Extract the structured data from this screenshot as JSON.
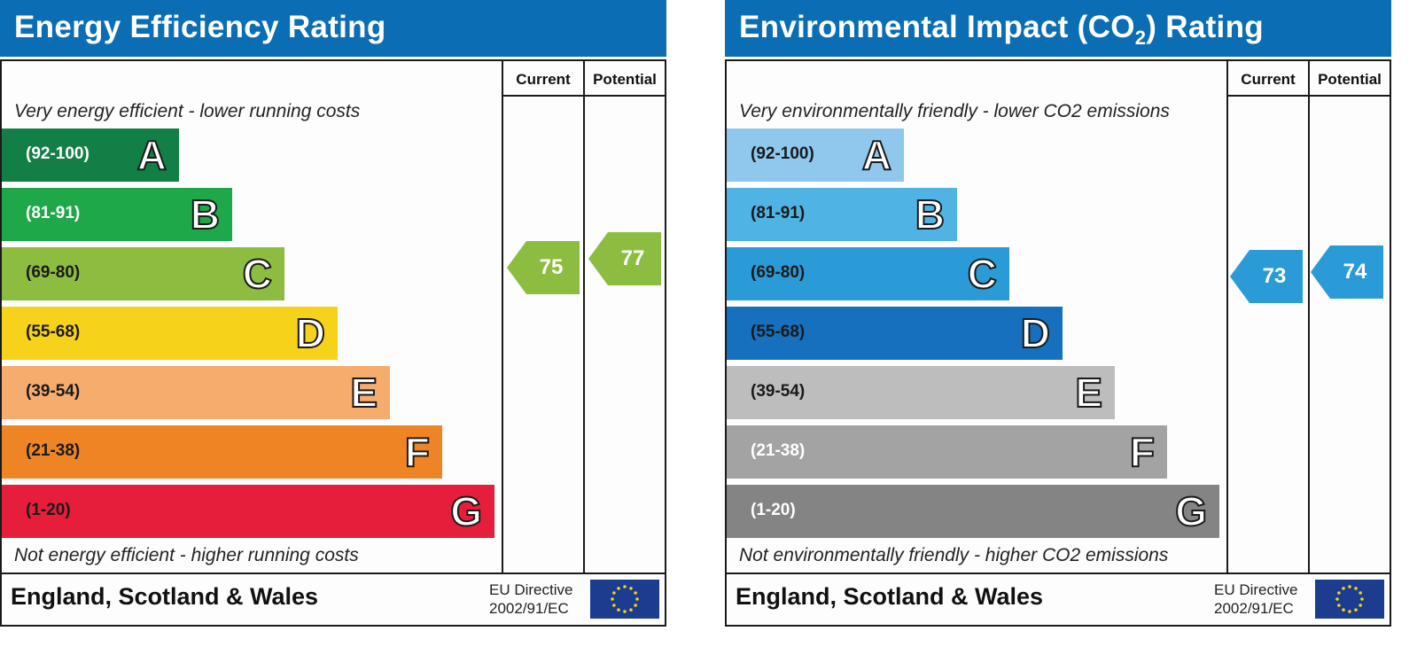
{
  "panels": [
    {
      "title": "Energy Efficiency Rating",
      "title_sub": "",
      "title_suffix": "",
      "col_current": "Current",
      "col_potential": "Potential",
      "caption_top": "Very energy efficient - lower running costs",
      "caption_bottom": "Not energy efficient - higher running costs",
      "footer_country": "England, Scotland & Wales",
      "footer_directive_1": "EU Directive",
      "footer_directive_2": "2002/91/EC",
      "current_value": "75",
      "potential_value": "77",
      "current_color": "#8cbd40",
      "potential_color": "#8cbd40",
      "bands": [
        {
          "range": "(92-100)",
          "letter": "A",
          "color": "#127f46",
          "text_color": "#ffffff"
        },
        {
          "range": "(81-91)",
          "letter": "B",
          "color": "#1fa84a",
          "text_color": "#ffffff"
        },
        {
          "range": "(69-80)",
          "letter": "C",
          "color": "#8cbd40",
          "text_color": "#1a1a1a"
        },
        {
          "range": "(55-68)",
          "letter": "D",
          "color": "#f6d21a",
          "text_color": "#1a1a1a"
        },
        {
          "range": "(39-54)",
          "letter": "E",
          "color": "#f6ac6c",
          "text_color": "#1a1a1a"
        },
        {
          "range": "(21-38)",
          "letter": "F",
          "color": "#ee8424",
          "text_color": "#1a1a1a"
        },
        {
          "range": "(1-20)",
          "letter": "G",
          "color": "#e61e3c",
          "text_color": "#1a1a1a"
        }
      ]
    },
    {
      "title": "Environmental Impact (CO",
      "title_sub": "2",
      "title_suffix": ") Rating",
      "col_current": "Current",
      "col_potential": "Potential",
      "caption_top": "Very environmentally friendly - lower CO2 emissions",
      "caption_bottom": "Not environmentally friendly - higher CO2 emissions",
      "footer_country": "England, Scotland & Wales",
      "footer_directive_1": "EU Directive",
      "footer_directive_2": "2002/91/EC",
      "current_value": "73",
      "potential_value": "74",
      "current_color": "#2a9bd6",
      "potential_color": "#2a9bd6",
      "bands": [
        {
          "range": "(92-100)",
          "letter": "A",
          "color": "#8fc8ec",
          "text_color": "#1a1a1a"
        },
        {
          "range": "(81-91)",
          "letter": "B",
          "color": "#4fb3e3",
          "text_color": "#1a1a1a"
        },
        {
          "range": "(69-80)",
          "letter": "C",
          "color": "#2a9bd6",
          "text_color": "#1a1a1a"
        },
        {
          "range": "(55-68)",
          "letter": "D",
          "color": "#1670bd",
          "text_color": "#1a1a1a"
        },
        {
          "range": "(39-54)",
          "letter": "E",
          "color": "#bdbdbd",
          "text_color": "#1a1a1a"
        },
        {
          "range": "(21-38)",
          "letter": "F",
          "color": "#a3a3a3",
          "text_color": "#ffffff"
        },
        {
          "range": "(1-20)",
          "letter": "G",
          "color": "#848484",
          "text_color": "#ffffff"
        }
      ]
    }
  ],
  "chart_data": [
    {
      "type": "bar",
      "title": "Energy Efficiency Rating",
      "categories": [
        "(92-100) A",
        "(81-91) B",
        "(69-80) C",
        "(55-68) D",
        "(39-54) E",
        "(21-38) F",
        "(1-20) G"
      ],
      "current": 75,
      "current_band": "C",
      "potential": 77,
      "potential_band": "C"
    },
    {
      "type": "bar",
      "title": "Environmental Impact (CO2) Rating",
      "categories": [
        "(92-100) A",
        "(81-91) B",
        "(69-80) C",
        "(55-68) D",
        "(39-54) E",
        "(21-38) F",
        "(1-20) G"
      ],
      "current": 73,
      "current_band": "C",
      "potential": 74,
      "potential_band": "C"
    }
  ]
}
